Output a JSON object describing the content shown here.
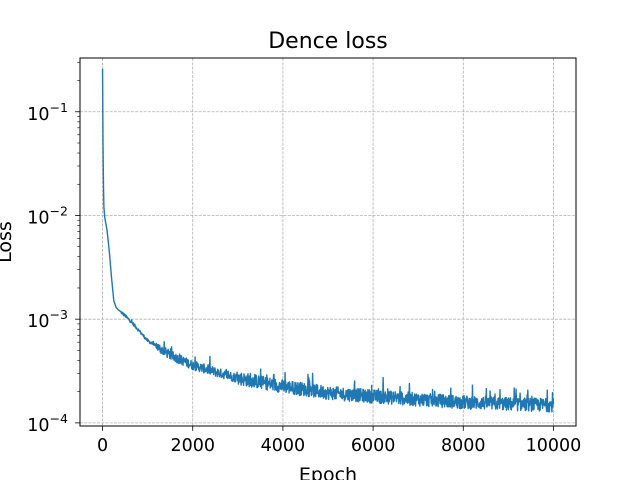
{
  "chart_data": {
    "type": "line",
    "title": "Dence loss",
    "xlabel": "Epoch",
    "ylabel": "Loss",
    "yscale": "log",
    "xlim": [
      -500,
      10500
    ],
    "ylim": [
      9.33e-05,
      0.33
    ],
    "grid": true,
    "grid_style": "dashed",
    "x_ticks": [
      {
        "value": 0,
        "label": "0"
      },
      {
        "value": 2000,
        "label": "2000"
      },
      {
        "value": 4000,
        "label": "4000"
      },
      {
        "value": 6000,
        "label": "6000"
      },
      {
        "value": 8000,
        "label": "8000"
      },
      {
        "value": 10000,
        "label": "10000"
      }
    ],
    "y_ticks": [
      {
        "value": 0.0001,
        "base": "10",
        "exp": "−4"
      },
      {
        "value": 0.001,
        "base": "10",
        "exp": "−3"
      },
      {
        "value": 0.01,
        "base": "10",
        "exp": "−2"
      },
      {
        "value": 0.1,
        "base": "10",
        "exp": "−1"
      }
    ],
    "series": [
      {
        "color": "#1f77b4",
        "x": [
          0,
          5,
          10,
          20,
          30,
          50,
          100,
          150,
          200,
          250,
          300,
          350,
          400,
          500,
          700,
          1000,
          1500,
          2000,
          2500,
          3000,
          4000,
          5000,
          6000,
          7000,
          8000,
          9000,
          10000
        ],
        "y": [
          0.26,
          0.12,
          0.05,
          0.02,
          0.012,
          0.0095,
          0.0072,
          0.0045,
          0.0025,
          0.0015,
          0.0013,
          0.00123,
          0.00118,
          0.00108,
          0.00088,
          0.00062,
          0.00045,
          0.00036,
          0.00031,
          0.00027,
          0.000225,
          0.000195,
          0.00018,
          0.000168,
          0.000158,
          0.000152,
          0.000148
        ]
      }
    ]
  }
}
